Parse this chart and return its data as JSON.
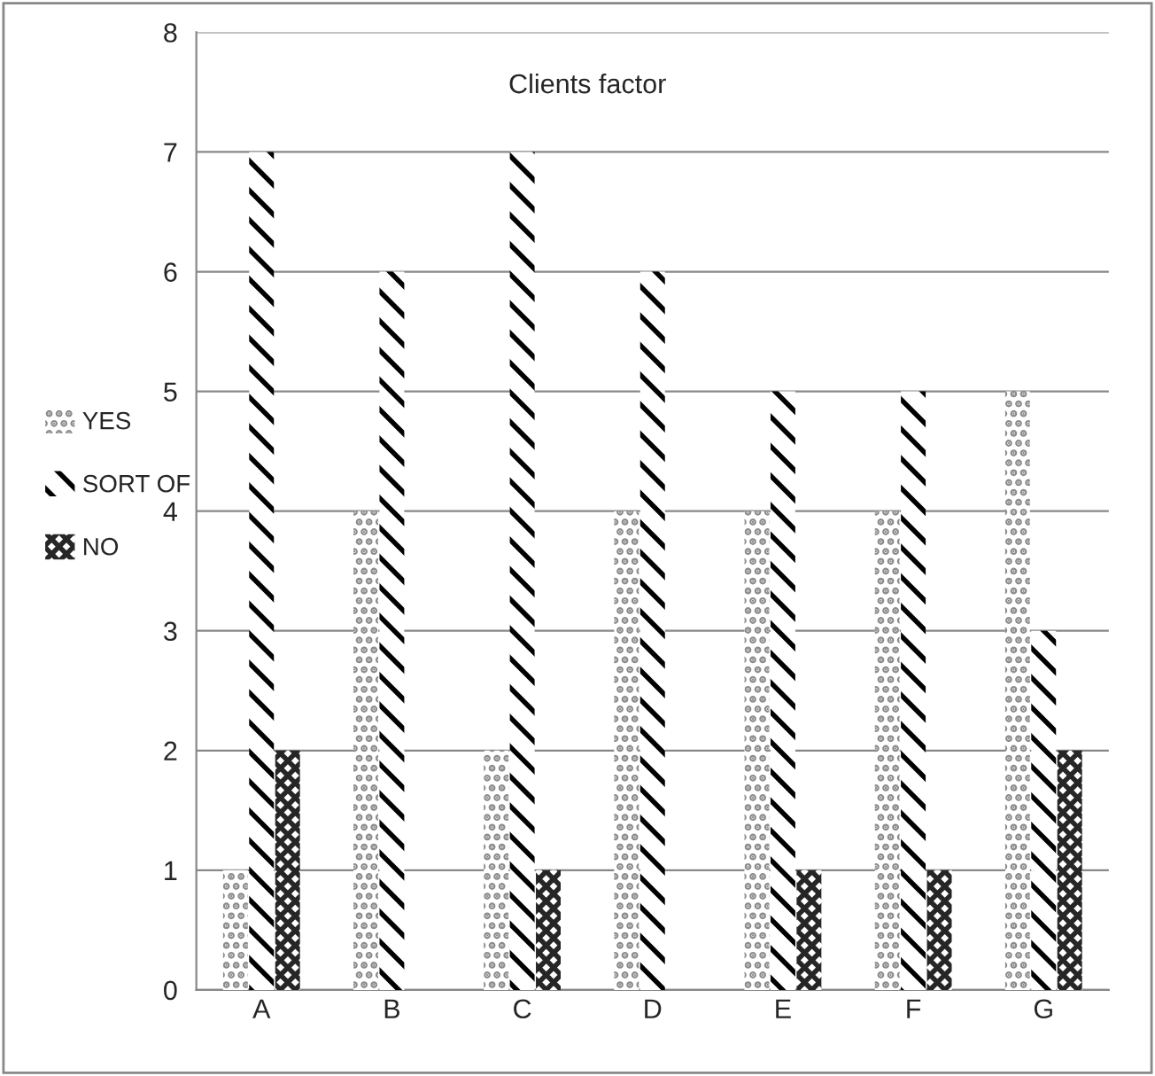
{
  "chart_data": {
    "type": "bar",
    "title": "Clients factor",
    "categories": [
      "A",
      "B",
      "C",
      "D",
      "E",
      "F",
      "G"
    ],
    "series": [
      {
        "name": "YES",
        "color": "#8c8c8c",
        "values": [
          1,
          4,
          2,
          4,
          4,
          4,
          5
        ]
      },
      {
        "name": "SORT OF",
        "color": "#000000",
        "values": [
          7,
          6,
          7,
          6,
          5,
          5,
          3
        ]
      },
      {
        "name": "NO",
        "color": "#262626",
        "values": [
          2,
          0,
          1,
          0,
          1,
          1,
          2
        ]
      }
    ],
    "ylim": [
      0,
      8
    ],
    "yticks": [
      0,
      1,
      2,
      3,
      4,
      5,
      6,
      7,
      8
    ],
    "grid": "y",
    "legend": "left"
  }
}
